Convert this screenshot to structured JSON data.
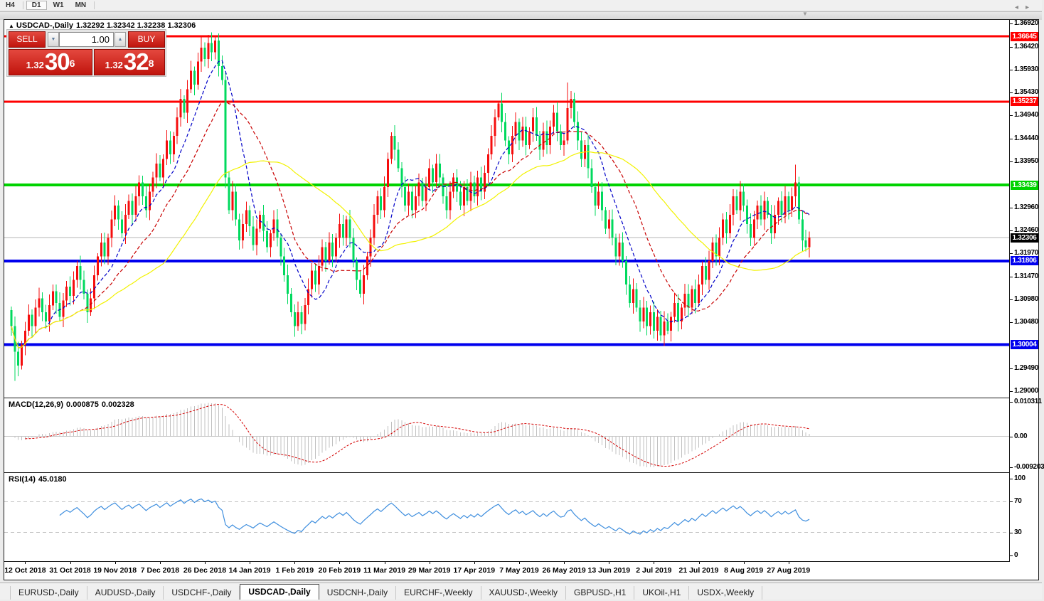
{
  "toolbar": {
    "periods": [
      {
        "label": "H4",
        "active": false
      },
      {
        "label": "D1",
        "active": true
      },
      {
        "label": "W1",
        "active": false
      },
      {
        "label": "MN",
        "active": false
      }
    ]
  },
  "icons": {
    "collapse_chart": "▲",
    "panel_collapse": "▼",
    "spinner_down": "▼",
    "spinner_up": "▲",
    "tab_scroll_left": "◂",
    "tab_scroll_right": "▸"
  },
  "chart_header": {
    "symbol_title": "USDCAD-,Daily",
    "ohlc": "1.32292 1.32342 1.32238 1.32306"
  },
  "trade_panel": {
    "sell_label": "SELL",
    "buy_label": "BUY",
    "volume": "1.00",
    "sell_price": {
      "prefix": "1.32",
      "big": "30",
      "sup": "6"
    },
    "buy_price": {
      "prefix": "1.32",
      "big": "32",
      "sup": "8"
    }
  },
  "price_axis": {
    "ticks": [
      "1.36920",
      "1.36420",
      "1.35930",
      "1.35430",
      "1.34940",
      "1.34440",
      "1.33950",
      "1.32960",
      "1.32460",
      "1.31970",
      "1.31470",
      "1.30980",
      "1.30480",
      "1.29490",
      "1.29000"
    ],
    "badges": [
      {
        "label": "1.36645",
        "value": 1.36645,
        "bg": "#ff0000",
        "fg": "#ffffff"
      },
      {
        "label": "1.35237",
        "value": 1.35237,
        "bg": "#ff0000",
        "fg": "#ffffff"
      },
      {
        "label": "1.33439",
        "value": 1.33439,
        "bg": "#00d300",
        "fg": "#ffffff"
      },
      {
        "label": "1.32306",
        "value": 1.32306,
        "bg": "#000000",
        "fg": "#ffffff"
      },
      {
        "label": "1.31806",
        "value": 1.31806,
        "bg": "#0000ee",
        "fg": "#ffffff"
      },
      {
        "label": "1.30004",
        "value": 1.30004,
        "bg": "#0000ee",
        "fg": "#ffffff"
      }
    ]
  },
  "levels": [
    {
      "value": 1.36645,
      "color": "#ff0000",
      "width": 3
    },
    {
      "value": 1.35237,
      "color": "#ff0000",
      "width": 3
    },
    {
      "value": 1.33439,
      "color": "#00d300",
      "width": 4
    },
    {
      "value": 1.31806,
      "color": "#0000ee",
      "width": 4
    },
    {
      "value": 1.30004,
      "color": "#0000ee",
      "width": 4
    }
  ],
  "current_price": {
    "value": 1.32306,
    "line_color": "#b4b4b4"
  },
  "macd_panel": {
    "name": "MACD(12,26,9)",
    "value1": "0.000875",
    "value2": "0.002328",
    "axis": [
      {
        "label": "0.010311",
        "value": 0.010311
      },
      {
        "label": "0.00",
        "value": 0
      },
      {
        "label": "-0.009203",
        "value": -0.009203
      }
    ]
  },
  "rsi_panel": {
    "name": "RSI(14)",
    "value": "45.0180",
    "axis": [
      {
        "label": "100",
        "value": 100
      },
      {
        "label": "70",
        "value": 70
      },
      {
        "label": "30",
        "value": 30
      },
      {
        "label": "0",
        "value": 0
      }
    ],
    "guide_levels": [
      70,
      30
    ]
  },
  "date_axis": [
    "12 Oct 2018",
    "31 Oct 2018",
    "19 Nov 2018",
    "7 Dec 2018",
    "26 Dec 2018",
    "14 Jan 2019",
    "1 Feb 2019",
    "20 Feb 2019",
    "11 Mar 2019",
    "29 Mar 2019",
    "17 Apr 2019",
    "7 May 2019",
    "26 May 2019",
    "13 Jun 2019",
    "2 Jul 2019",
    "21 Jul 2019",
    "8 Aug 2019",
    "27 Aug 2019"
  ],
  "tabs": {
    "items": [
      {
        "label": "EURUSD-,Daily",
        "active": false
      },
      {
        "label": "AUDUSD-,Daily",
        "active": false
      },
      {
        "label": "USDCHF-,Daily",
        "active": false
      },
      {
        "label": "USDCAD-,Daily",
        "active": true
      },
      {
        "label": "USDCNH-,Daily",
        "active": false
      },
      {
        "label": "EURCHF-,Weekly",
        "active": false
      },
      {
        "label": "XAUUSD-,Weekly",
        "active": false
      },
      {
        "label": "GBPUSD-,H1",
        "active": false
      },
      {
        "label": "UKOil-,H1",
        "active": false
      },
      {
        "label": "USDX-,Weekly",
        "active": false
      }
    ]
  },
  "chart_data": {
    "type": "candlestick",
    "symbol": "USDCAD-",
    "timeframe": "Daily",
    "title": "USDCAD-,Daily",
    "ylim": [
      1.29,
      1.3692
    ],
    "up_color": "#f50d0d",
    "down_color": "#00d95e",
    "first_open": 1.3075,
    "closes": [
      1.304,
      1.2985,
      1.2955,
      1.3,
      1.303,
      1.3065,
      1.304,
      1.308,
      1.31,
      1.307,
      1.305,
      1.3085,
      1.3115,
      1.309,
      1.306,
      1.3095,
      1.3125,
      1.3105,
      1.314,
      1.317,
      1.314,
      1.311,
      1.307,
      1.31,
      1.315,
      1.319,
      1.322,
      1.319,
      1.323,
      1.327,
      1.33,
      1.327,
      1.324,
      1.328,
      1.331,
      1.328,
      1.332,
      1.335,
      1.332,
      1.329,
      1.333,
      1.336,
      1.339,
      1.336,
      1.34,
      1.344,
      1.341,
      1.345,
      1.349,
      1.353,
      1.35,
      1.355,
      1.359,
      1.356,
      1.361,
      1.364,
      1.3615,
      1.365,
      1.363,
      1.3655,
      1.36,
      1.357,
      1.336,
      1.329,
      1.333,
      1.327,
      1.3225,
      1.326,
      1.329,
      1.3255,
      1.3215,
      1.325,
      1.328,
      1.3245,
      1.321,
      1.324,
      1.327,
      1.323,
      1.319,
      1.315,
      1.311,
      1.307,
      1.304,
      1.307,
      1.3045,
      1.3085,
      1.312,
      1.316,
      1.313,
      1.317,
      1.321,
      1.318,
      1.322,
      1.319,
      1.323,
      1.326,
      1.323,
      1.327,
      1.323,
      1.318,
      1.314,
      1.311,
      1.315,
      1.319,
      1.323,
      1.328,
      1.332,
      1.329,
      1.334,
      1.34,
      1.345,
      1.342,
      1.338,
      1.334,
      1.33,
      1.333,
      1.329,
      1.332,
      1.335,
      1.331,
      1.334,
      1.338,
      1.335,
      1.339,
      1.336,
      1.332,
      1.329,
      1.333,
      1.336,
      1.333,
      1.33,
      1.334,
      1.331,
      1.335,
      1.332,
      1.336,
      1.333,
      1.337,
      1.341,
      1.345,
      1.349,
      1.352,
      1.348,
      1.344,
      1.341,
      1.345,
      1.348,
      1.344,
      1.347,
      1.343,
      1.346,
      1.349,
      1.345,
      1.342,
      1.346,
      1.343,
      1.347,
      1.35,
      1.346,
      1.343,
      1.344,
      1.351,
      1.353,
      1.348,
      1.344,
      1.34,
      1.343,
      1.338,
      1.334,
      1.33,
      1.333,
      1.329,
      1.325,
      1.327,
      1.323,
      1.319,
      1.322,
      1.318,
      1.313,
      1.309,
      1.312,
      1.308,
      1.305,
      1.308,
      1.304,
      1.307,
      1.303,
      1.306,
      1.302,
      1.305,
      1.303,
      1.306,
      1.309,
      1.305,
      1.308,
      1.311,
      1.308,
      1.312,
      1.309,
      1.313,
      1.317,
      1.314,
      1.318,
      1.322,
      1.319,
      1.323,
      1.327,
      1.324,
      1.328,
      1.332,
      1.329,
      1.333,
      1.33,
      1.326,
      1.323,
      1.327,
      1.33,
      1.327,
      1.331,
      1.328,
      1.324,
      1.328,
      1.331,
      1.328,
      1.332,
      1.329,
      1.332,
      1.335,
      1.327,
      1.3225,
      1.321,
      1.32306
    ],
    "wick_overrides": {
      "1": {
        "low": 1.2922
      },
      "59": {
        "high": 1.36645
      },
      "110": {
        "high": 1.3458
      },
      "141": {
        "high": 1.35237
      },
      "161": {
        "high": 1.3565
      },
      "227": {
        "high": 1.3388
      }
    },
    "moving_averages": [
      {
        "period": 10,
        "color": "#0000c8",
        "style": "dashed"
      },
      {
        "period": 21,
        "color": "#c80000",
        "style": "dashed"
      },
      {
        "period": 45,
        "color": "#f2f200",
        "style": "solid"
      }
    ],
    "macd": {
      "fast": 12,
      "slow": 26,
      "signal": 9,
      "hist_color": "#c0c0c0",
      "signal_color": "#d40000",
      "ylim": [
        -0.009203,
        0.010311
      ]
    },
    "rsi": {
      "period": 14,
      "color": "#3e8ede",
      "ylim": [
        0,
        100
      ],
      "guide_color": "#c0c0c0"
    }
  }
}
